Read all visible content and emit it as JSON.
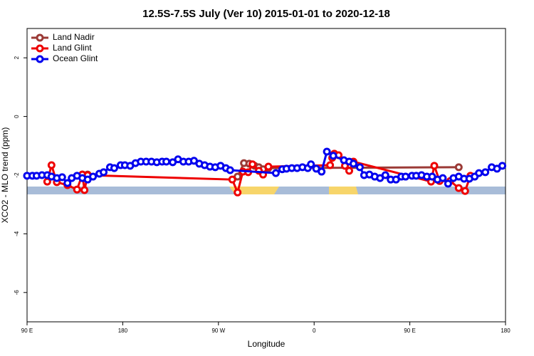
{
  "chart_data": {
    "type": "line",
    "title": "12.5S-7.5S July (Ver 10)   2015-01-01 to 2020-12-18",
    "x_label": "Longitude",
    "y_label": "XCO2 - MLO trend (ppm)",
    "xlim": [
      90,
      540
    ],
    "ylim": [
      -7,
      3
    ],
    "xticks": [
      {
        "value": 90,
        "label": "90 E"
      },
      180,
      {
        "value": 270,
        "label": "90 W"
      },
      {
        "value": 360,
        "label": "0"
      },
      {
        "value": 450,
        "label": "90 E"
      },
      {
        "value": 540,
        "label": "180"
      }
    ],
    "yticks": [
      -6,
      -4,
      -2,
      0,
      2
    ],
    "legend": "top-left",
    "series": [
      {
        "name": "Land Nadir",
        "color": "#9b3a36",
        "x": [
          142,
          147,
          283,
          288,
          294,
          299,
          304,
          308,
          312,
          317,
          496,
          502
        ],
        "values": [
          -1.98,
          -1.98,
          null,
          -2.05,
          -1.59,
          -1.61,
          -1.68,
          -1.73,
          -1.8,
          -1.76,
          -1.73,
          null
        ]
      },
      {
        "name": "Land Glint",
        "color": "#ee0000",
        "x": [
          109,
          113,
          118,
          128,
          137,
          142,
          144,
          147,
          283,
          288,
          293,
          298,
          302,
          308,
          312,
          317,
          375,
          377,
          379,
          383,
          389,
          393,
          397,
          470,
          473,
          478,
          488,
          496,
          502,
          507
        ],
        "values": [
          -2.22,
          -1.66,
          -2.24,
          -2.34,
          -2.49,
          -1.98,
          -2.51,
          -2.0,
          -2.15,
          -2.59,
          -1.88,
          -1.9,
          -1.63,
          -1.85,
          -1.98,
          -1.71,
          -1.66,
          -1.41,
          -1.27,
          -1.32,
          -1.68,
          -1.85,
          -1.54,
          -2.22,
          -1.68,
          -2.2,
          -2.2,
          -2.44,
          -2.54,
          -2.02
        ]
      },
      {
        "name": "Ocean Glint",
        "color": "#0000ee",
        "x": [
          90,
          95,
          99,
          104,
          109,
          113,
          118,
          123,
          128,
          132,
          137,
          142,
          147,
          152,
          158,
          162,
          168,
          172,
          178,
          182,
          187,
          192,
          197,
          202,
          207,
          212,
          217,
          221,
          227,
          232,
          237,
          242,
          247,
          252,
          257,
          262,
          267,
          272,
          277,
          281,
          324,
          330,
          334,
          339,
          344,
          349,
          354,
          357,
          362,
          367,
          372,
          378,
          388,
          393,
          397,
          403,
          407,
          412,
          417,
          422,
          427,
          432,
          437,
          442,
          446,
          452,
          456,
          461,
          466,
          471,
          476,
          481,
          486,
          491,
          496,
          501,
          506,
          511,
          515,
          521,
          527,
          532,
          537
        ],
        "values": [
          -2.02,
          -2.02,
          -2.02,
          -2.0,
          -2.0,
          -2.05,
          -2.1,
          -2.07,
          -2.27,
          -2.1,
          -2.02,
          -2.1,
          -2.15,
          -2.05,
          -1.95,
          -1.9,
          -1.73,
          -1.76,
          -1.66,
          -1.66,
          -1.68,
          -1.59,
          -1.54,
          -1.54,
          -1.54,
          -1.56,
          -1.54,
          -1.54,
          -1.56,
          -1.46,
          -1.54,
          -1.54,
          -1.51,
          -1.61,
          -1.66,
          -1.71,
          -1.73,
          -1.68,
          -1.76,
          -1.83,
          -1.93,
          -1.8,
          -1.78,
          -1.76,
          -1.76,
          -1.73,
          -1.76,
          -1.63,
          -1.78,
          -1.88,
          -1.2,
          -1.34,
          -1.49,
          -1.54,
          -1.61,
          -1.73,
          -2.0,
          -1.98,
          -2.05,
          -2.1,
          -2.0,
          -2.15,
          -2.15,
          -2.05,
          -2.05,
          -2.02,
          -2.02,
          -2.0,
          -2.05,
          -2.05,
          -2.15,
          -2.1,
          -2.29,
          -2.1,
          -2.05,
          -2.12,
          -2.12,
          -2.05,
          -1.93,
          -1.9,
          -1.73,
          -1.78,
          -1.68
        ]
      }
    ]
  }
}
